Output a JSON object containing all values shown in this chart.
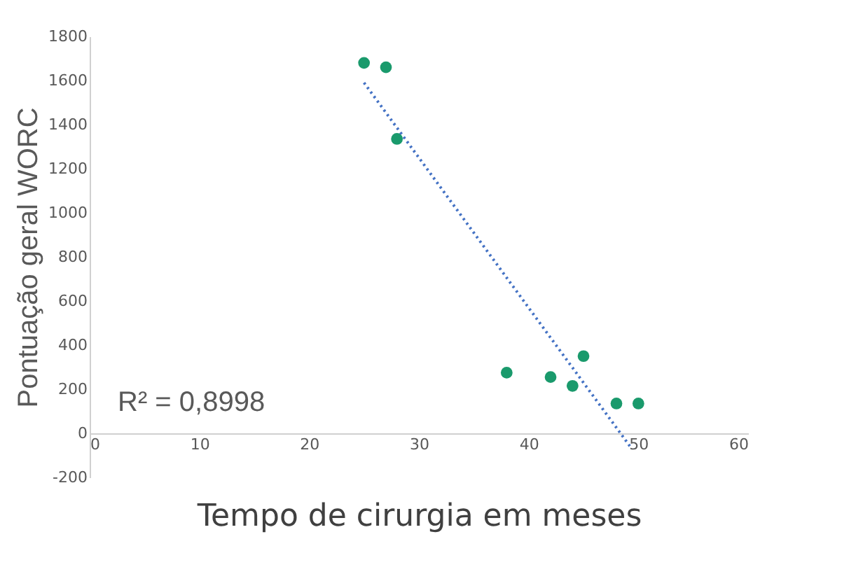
{
  "chart_data": {
    "type": "scatter",
    "xlabel": "Tempo de cirurgia em meses",
    "ylabel": "Pontuação geral WORC",
    "xlim": [
      0,
      60
    ],
    "xticks": [
      0,
      10,
      20,
      30,
      40,
      50,
      60
    ],
    "ylim": [
      -200,
      1800
    ],
    "yticks": [
      -200,
      0,
      200,
      400,
      600,
      800,
      1000,
      1200,
      1400,
      1600,
      1800
    ],
    "grid": false,
    "series": [
      {
        "color": "#1a9a6c",
        "marker": "circle",
        "x": [
          25,
          27,
          28,
          38,
          42,
          44,
          45,
          48,
          50
        ],
        "values": [
          1680,
          1660,
          1335,
          275,
          255,
          215,
          350,
          135,
          135
        ]
      },
      {
        "type": "line",
        "color": "#4472c4",
        "line_style": "dotted",
        "marker": "none",
        "x": [
          25,
          49.4
        ],
        "values": [
          1590,
          -70
        ]
      }
    ],
    "annotations": [
      "R² = 0,8998"
    ]
  }
}
